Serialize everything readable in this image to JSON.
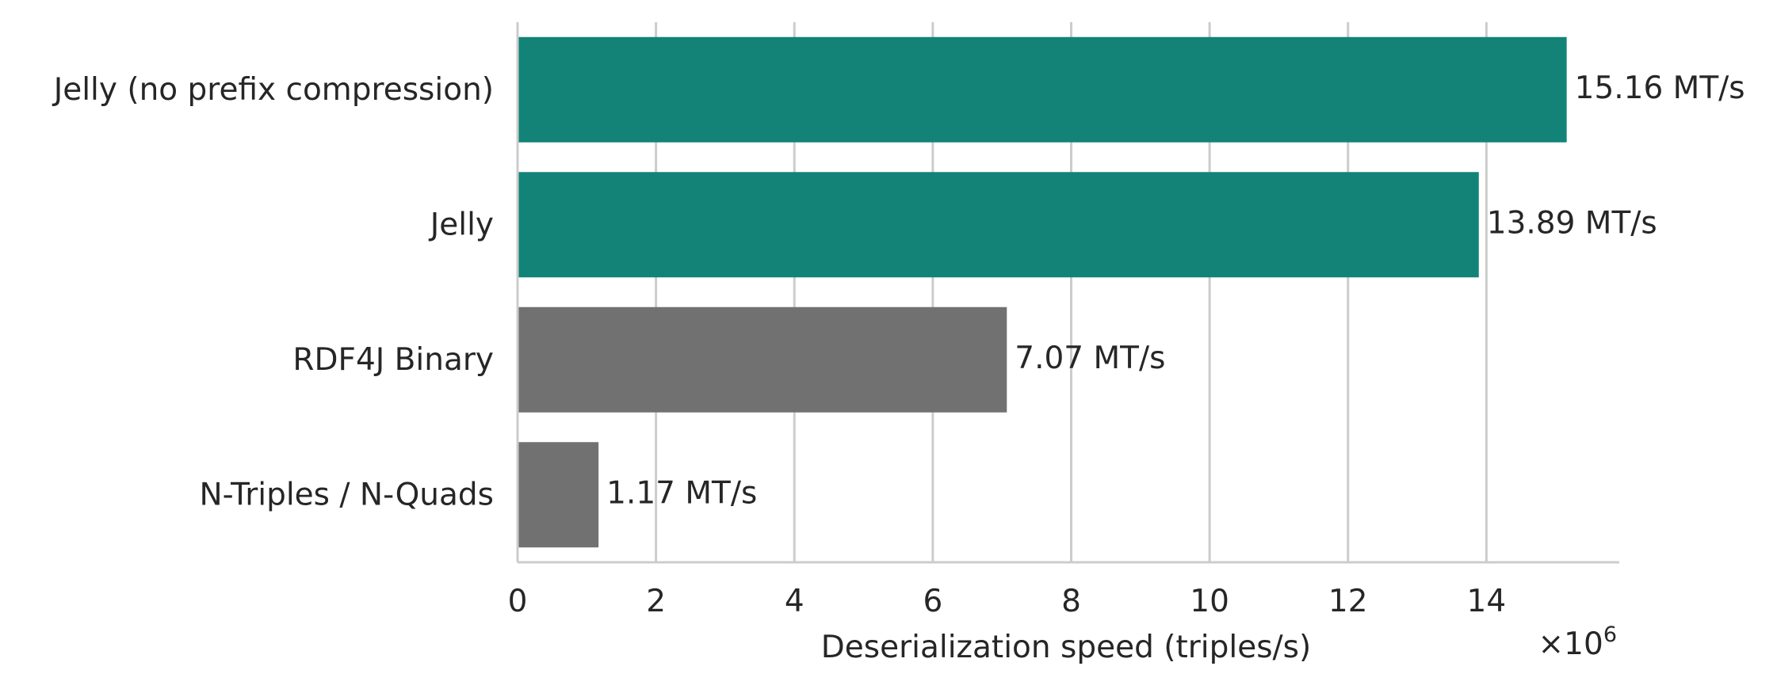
{
  "chart_data": {
    "type": "bar",
    "orientation": "horizontal",
    "categories": [
      "Jelly (no prefix compression)",
      "Jelly",
      "RDF4J Binary",
      "N-Triples / N-Quads"
    ],
    "values": [
      15.16,
      13.89,
      7.07,
      1.17
    ],
    "value_labels": [
      "15.16 MT/s",
      "13.89 MT/s",
      "7.07 MT/s",
      "1.17 MT/s"
    ],
    "bar_colors": [
      "#138378",
      "#138378",
      "#717171",
      "#717171"
    ],
    "xlabel": "Deserialization speed (triples/s)",
    "x_scale_label": "×10",
    "x_scale_exponent": "6",
    "xticks": [
      0,
      2,
      4,
      6,
      8,
      10,
      12,
      14
    ],
    "xlim": [
      0,
      15.92
    ],
    "grid": true,
    "legend": "none"
  }
}
